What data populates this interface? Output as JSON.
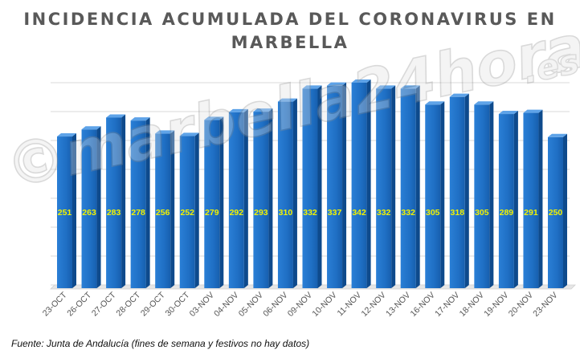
{
  "chart_data": {
    "type": "bar",
    "title_lines": [
      "INCIDENCIA ACUMULADA DEL CORONAVIRUS EN",
      "MARBELLA"
    ],
    "categories": [
      "23-OCT",
      "26-OCT",
      "27-OCT",
      "28-OCT",
      "29-OCT",
      "30-OCT",
      "03-NOV",
      "04-NOV",
      "05-NOV",
      "06-NOV",
      "09-NOV",
      "10-NOV",
      "11-NOV",
      "12-NOV",
      "13-NOV",
      "16-NOV",
      "17-NOV",
      "18-NOV",
      "19-NOV",
      "20-NOV",
      "23-NOV"
    ],
    "values": [
      251,
      263,
      283,
      278,
      256,
      252,
      279,
      292,
      293,
      310,
      332,
      337,
      342,
      332,
      332,
      305,
      318,
      305,
      289,
      291,
      250
    ],
    "ylim": [
      0,
      342
    ],
    "grid": true,
    "bar_color": "#1e6ec2",
    "label_color": "#f2f200",
    "gridline_color": "#d9d9d9"
  },
  "footer": {
    "source": "Fuente: Junta de Andalucía (fines de semana y festivos no hay datos)"
  },
  "watermark": {
    "main": "©marbella24horas",
    "suffix": ".es"
  }
}
